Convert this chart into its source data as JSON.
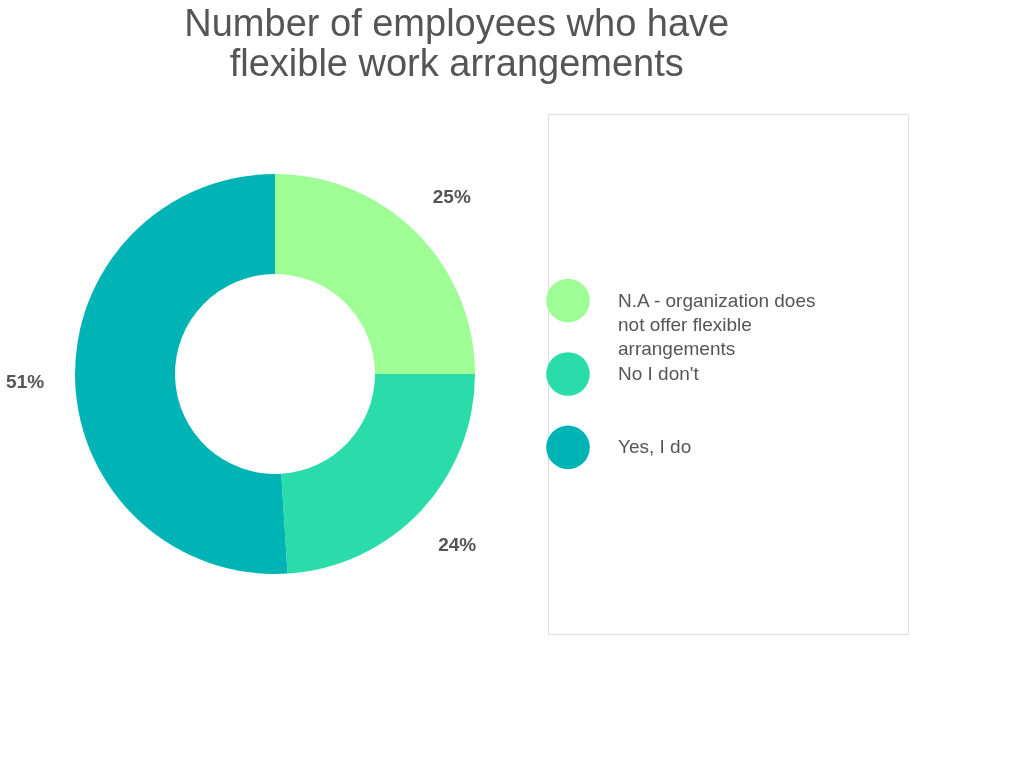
{
  "chart_data": {
    "type": "donut",
    "title": "Number of employees who have flexible work arrangements",
    "categories": [
      "N.A - organization does not offer flexible arrangements",
      "No I don't",
      "Yes, I do"
    ],
    "values": [
      25,
      24,
      51
    ],
    "colors": [
      "#9ffd95",
      "#2adcaa",
      "#00b3b5"
    ],
    "value_labels": [
      "25%",
      "24%",
      "51%"
    ],
    "legend": "right"
  }
}
